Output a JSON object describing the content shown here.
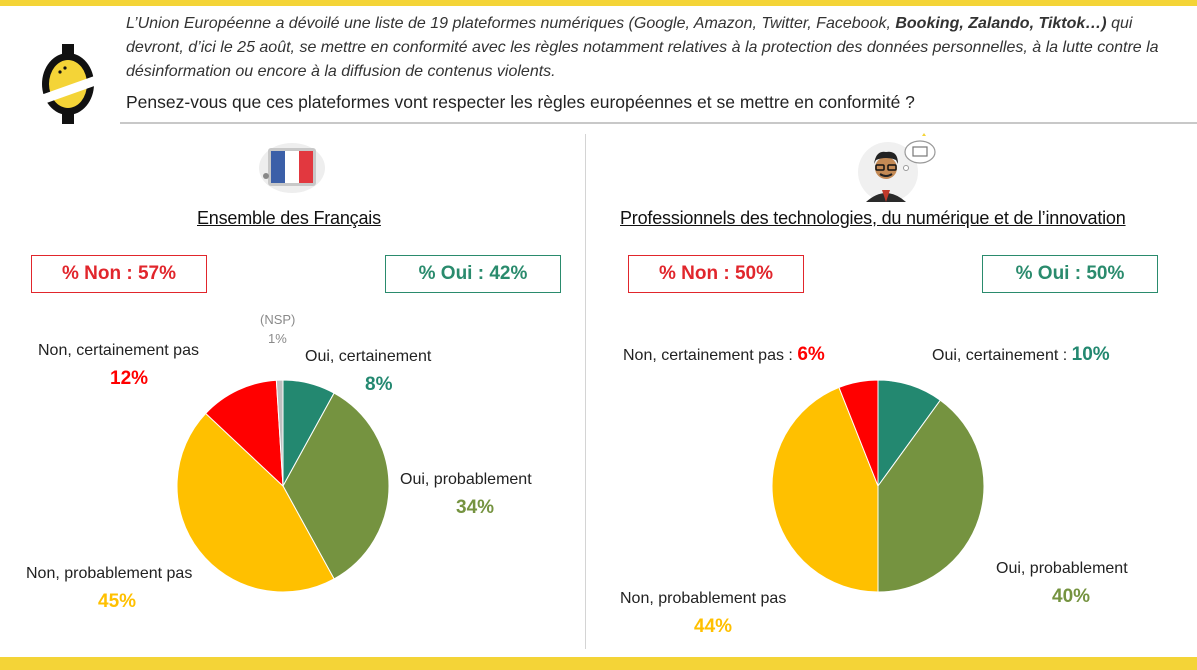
{
  "header": {
    "intro_part1": "L’Union Européenne a dévoilé une liste de 19 plateformes numériques (Google, Amazon, Twitter, Facebook, ",
    "intro_bold1": "Booking, Zalando,",
    "intro_bold2": "Tiktok…)",
    "intro_part2": " qui devront, d’ici le 25 août, se mettre en conformité avec les règles notamment relatives à la protection des données personnelles, à la lutte contre la désinformation ou encore à la diffusion de contenus violents.",
    "question": "Pensez-vous que ces plateformes vont respecter les règles européennes et se mettre en conformité ?"
  },
  "icons": {
    "logo": "brand-logo-icon",
    "left": "french-flag-icon",
    "right": "tech-professional-icon"
  },
  "colors": {
    "accent_yellow": "#f4d437",
    "non_red": "#ff0000",
    "oui_teal": "#2a8b6d",
    "teal": "#238870",
    "olive": "#759340",
    "yellow": "#ffc000",
    "grey": "#bfbfbf"
  },
  "left": {
    "title": "Ensemble des Français",
    "total_non": "% Non : 57%",
    "total_oui": "% Oui : 42%",
    "labels": {
      "nsp": "(NSP)",
      "nsp_pct": "1%",
      "oui_cert": "Oui, certainement",
      "oui_cert_pct": "8%",
      "oui_prob": "Oui, probablement",
      "oui_prob_pct": "34%",
      "non_prob": "Non, probablement pas",
      "non_prob_pct": "45%",
      "non_cert": "Non, certainement pas",
      "non_cert_pct": "12%"
    }
  },
  "right": {
    "title": "Professionnels des technologies, du numérique et de l’innovation",
    "total_non": "% Non : 50%",
    "total_oui": "% Oui : 50%",
    "labels": {
      "non_cert": "Non, certainement pas : ",
      "non_cert_pct": "6%",
      "oui_cert": "Oui, certainement : ",
      "oui_cert_pct": "10%",
      "oui_prob": "Oui, probablement",
      "oui_prob_pct": "40%",
      "non_prob": "Non, probablement pas",
      "non_prob_pct": "44%"
    }
  },
  "chart_data": [
    {
      "type": "pie",
      "title": "Ensemble des Français",
      "categories": [
        "Oui, certainement",
        "Oui, probablement",
        "Non, probablement pas",
        "Non, certainement pas",
        "(NSP)"
      ],
      "values": [
        8,
        34,
        45,
        12,
        1
      ],
      "colors": [
        "#238870",
        "#759340",
        "#ffc000",
        "#ff0000",
        "#bfbfbf"
      ]
    },
    {
      "type": "pie",
      "title": "Professionnels des technologies, du numérique et de l’innovation",
      "categories": [
        "Oui, certainement",
        "Oui, probablement",
        "Non, probablement pas",
        "Non, certainement pas"
      ],
      "values": [
        10,
        40,
        44,
        6
      ],
      "colors": [
        "#238870",
        "#759340",
        "#ffc000",
        "#ff0000"
      ]
    }
  ]
}
